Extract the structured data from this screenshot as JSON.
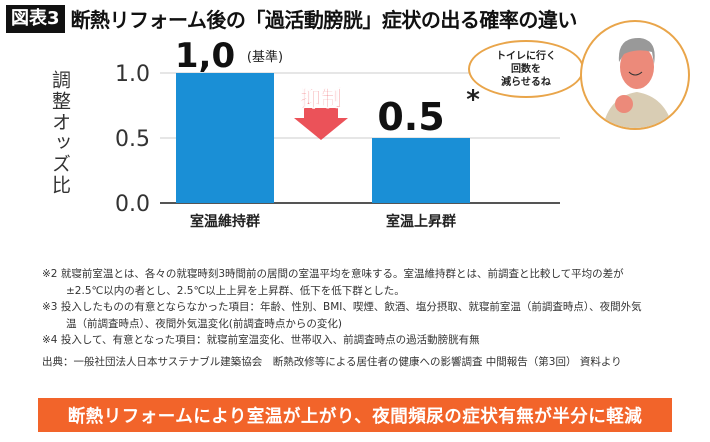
{
  "title": {
    "badge": "図表3",
    "text": "断熱リフォーム後の「過活動膀胱」症状の出る確率の違い"
  },
  "chart_data": {
    "type": "bar",
    "title": "断熱リフォーム後の「過活動膀胱」症状の出る確率の違い",
    "ylabel": "調整オッズ比",
    "xlabel": "",
    "categories": [
      "室温維持群",
      "室温上昇群"
    ],
    "values": [
      1.0,
      0.5
    ],
    "data_labels": [
      "1,0",
      "0.5"
    ],
    "data_label_suffix": [
      "(基準)",
      "*"
    ],
    "yticks": [
      "0.0",
      "0.5",
      "1.0"
    ],
    "ylim": [
      0,
      1.0
    ],
    "grid": true,
    "bar_color": "#1a8fd6",
    "annotation": "抑制",
    "annotation_color": "#e8343c"
  },
  "speech_bubble": "トイレに行く\n回数を\n減らせるね",
  "notes": [
    "※2 就寝前室温とは、各々の就寝時刻3時間前の居間の室温平均を意味する。室温維持群とは、前調査と比較して平均の差が",
    "±2.5℃以内の者とし、2.5℃以上上昇を上昇群、低下を低下群とした。",
    "※3 投入したものの有意とならなかった項目：年齢、性別、BMI、喫煙、飲酒、塩分摂取、就寝前室温（前調査時点）、夜間外気",
    "温（前調査時点）、夜間外気温変化(前調査時点からの変化)",
    "※4 投入して、有意となった項目：就寝前室温変化、世帯収入、前調査時点の過活動膀胱有無"
  ],
  "source": "出典：一般社団法人日本サステナブル建築協会　断熱改修等による居住者の健康への影響調査 中間報告（第3回） 資料より",
  "banner": "断熱リフォームにより室温が上がり、夜間頻尿の症状有無が半分に軽減"
}
